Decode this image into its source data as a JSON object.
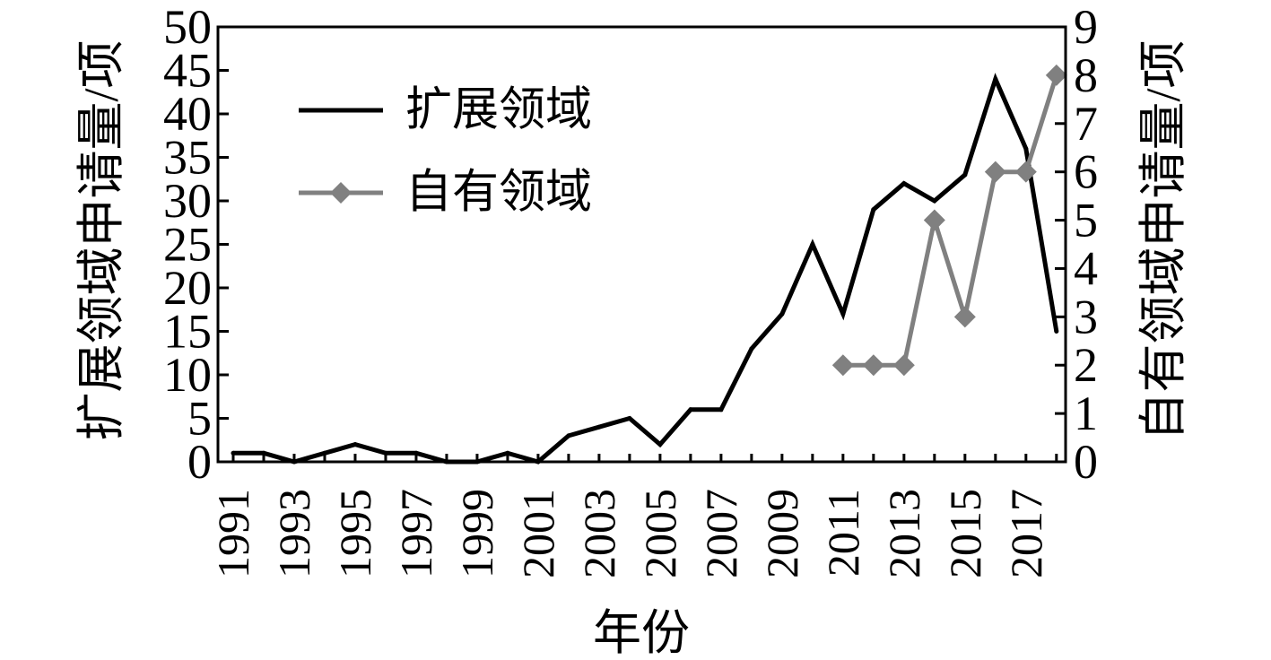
{
  "chart_data": {
    "type": "line",
    "xlabel": "年份",
    "ylabel": "扩展领域申请量/项",
    "ylabel_right": "自有领域申请量/项",
    "x": [
      1991,
      1992,
      1993,
      1994,
      1995,
      1996,
      1997,
      1998,
      1999,
      2000,
      2001,
      2002,
      2003,
      2004,
      2005,
      2006,
      2007,
      2008,
      2009,
      2010,
      2011,
      2012,
      2013,
      2014,
      2015,
      2016,
      2017,
      2018
    ],
    "xlim": [
      1990.5,
      2018.3
    ],
    "xticks": [
      1991,
      1993,
      1995,
      1997,
      1999,
      2001,
      2003,
      2005,
      2007,
      2009,
      2011,
      2013,
      2015,
      2017
    ],
    "ylim": [
      0,
      50
    ],
    "yticks": [
      0,
      5,
      10,
      15,
      20,
      25,
      30,
      35,
      40,
      45,
      50
    ],
    "ylim_right": [
      0,
      9
    ],
    "yticks_right": [
      0,
      1,
      2,
      3,
      4,
      5,
      6,
      7,
      8,
      9
    ],
    "grid": false,
    "legend": "top-left",
    "series": [
      {
        "name": "扩展领域",
        "axis": "left",
        "color": "#000000",
        "marker": "none",
        "values": [
          1,
          1,
          0,
          1,
          2,
          1,
          1,
          0,
          0,
          1,
          0,
          3,
          4,
          5,
          2,
          6,
          6,
          13,
          17,
          25,
          17,
          29,
          32,
          30,
          33,
          44,
          36,
          15
        ]
      },
      {
        "name": "自有领域",
        "axis": "right",
        "color": "#808080",
        "marker": "diamond",
        "values": [
          null,
          null,
          null,
          null,
          null,
          null,
          null,
          null,
          null,
          null,
          null,
          null,
          null,
          null,
          null,
          null,
          null,
          null,
          null,
          null,
          2,
          2,
          2,
          5,
          3,
          6,
          6,
          8
        ]
      }
    ]
  }
}
